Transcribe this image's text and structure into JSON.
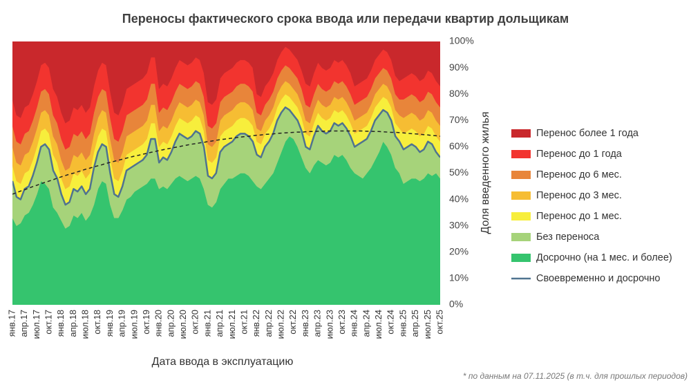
{
  "chart_data": {
    "type": "area",
    "title": "Переносы фактического срока ввода или передачи квартир дольщикам",
    "x_label": "Дата ввода в эксплуатацию",
    "y_label": "Доля введенного жилья",
    "footnote": "* по данным на 07.11.2025 (в т.ч. для прошлых периодов)",
    "legend": "right",
    "ylim": [
      0,
      100
    ],
    "yticks": [
      {
        "value": 0,
        "label": "0%"
      },
      {
        "value": 10,
        "label": "10%"
      },
      {
        "value": 20,
        "label": "20%"
      },
      {
        "value": 30,
        "label": "30%"
      },
      {
        "value": 40,
        "label": "40%"
      },
      {
        "value": 50,
        "label": "50%"
      },
      {
        "value": 60,
        "label": "60%"
      },
      {
        "value": 70,
        "label": "70%"
      },
      {
        "value": 80,
        "label": "80%"
      },
      {
        "value": 90,
        "label": "90%"
      },
      {
        "value": 100,
        "label": "100%"
      }
    ],
    "categories": [
      "янв.17",
      null,
      null,
      "апр.17",
      null,
      null,
      "июл.17",
      null,
      null,
      "окт.17",
      null,
      null,
      "янв.18",
      null,
      null,
      "апр.18",
      null,
      null,
      "июл.18",
      null,
      null,
      "окт.18",
      null,
      null,
      "янв.19",
      null,
      null,
      "апр.19",
      null,
      null,
      "июл.19",
      null,
      null,
      "окт.19",
      null,
      null,
      "янв.20",
      null,
      null,
      "апр.20",
      null,
      null,
      "июл.20",
      null,
      null,
      "окт.20",
      null,
      null,
      "янв.21",
      null,
      null,
      "апр.21",
      null,
      null,
      "июл.21",
      null,
      null,
      "окт.21",
      null,
      null,
      "янв.22",
      null,
      null,
      "апр.22",
      null,
      null,
      "июл.22",
      null,
      null,
      "окт.22",
      null,
      null,
      "янв.23",
      null,
      null,
      "апр.23",
      null,
      null,
      "июл.23",
      null,
      null,
      "окт.23",
      null,
      null,
      "янв.24",
      null,
      null,
      "апр.24",
      null,
      null,
      "июл.24",
      null,
      null,
      "окт.24",
      null,
      null,
      "янв.25",
      null,
      null,
      "апр.25",
      null,
      null,
      "июл.25",
      null,
      null,
      "окт.25"
    ],
    "series": [
      {
        "name": "Досрочно (на 1 мес. и более)",
        "type": "area",
        "color": "#35c46e",
        "values": [
          33,
          30,
          31,
          34,
          35,
          38,
          42,
          47,
          46,
          44,
          37,
          35,
          32,
          29,
          30,
          34,
          33,
          35,
          32,
          34,
          38,
          44,
          47,
          46,
          38,
          33,
          33,
          36,
          40,
          41,
          43,
          44,
          45,
          46,
          48,
          48,
          44,
          45,
          44,
          46,
          48,
          49,
          48,
          47,
          48,
          49,
          48,
          44,
          38,
          37,
          39,
          44,
          46,
          48,
          48,
          49,
          50,
          50,
          49,
          47,
          45,
          44,
          46,
          48,
          50,
          54,
          58,
          62,
          64,
          63,
          60,
          56,
          52,
          50,
          53,
          55,
          54,
          53,
          54,
          57,
          56,
          57,
          55,
          52,
          50,
          49,
          48,
          50,
          52,
          55,
          58,
          62,
          60,
          57,
          52,
          50,
          46,
          47,
          48,
          48,
          47,
          48,
          50,
          49,
          50,
          48
        ]
      },
      {
        "name": "Без переноса",
        "type": "area",
        "color": "#a6d37a",
        "values": [
          14,
          11,
          9,
          10,
          10,
          11,
          12,
          13,
          15,
          15,
          14,
          13,
          10,
          9,
          9,
          10,
          10,
          10,
          10,
          10,
          14,
          14,
          14,
          14,
          12,
          9,
          8,
          9,
          11,
          11,
          10,
          10,
          10,
          11,
          15,
          15,
          10,
          11,
          11,
          12,
          14,
          16,
          16,
          16,
          16,
          17,
          17,
          16,
          11,
          11,
          11,
          14,
          14,
          13,
          14,
          15,
          15,
          15,
          15,
          15,
          12,
          12,
          14,
          14,
          15,
          16,
          15,
          13,
          10,
          9,
          10,
          10,
          8,
          9,
          11,
          13,
          12,
          12,
          12,
          12,
          12,
          12,
          12,
          12,
          10,
          12,
          14,
          13,
          14,
          15,
          14,
          12,
          13,
          13,
          12,
          12,
          13,
          13,
          13,
          12,
          11,
          11,
          12,
          12,
          8,
          8
        ]
      },
      {
        "name": "Перенос до 1 мес.",
        "type": "area",
        "color": "#f7ee3c",
        "values": [
          6,
          6,
          6,
          6,
          6,
          6,
          6,
          6,
          6,
          6,
          6,
          6,
          6,
          6,
          6,
          6,
          6,
          6,
          6,
          6,
          6,
          6,
          6,
          6,
          6,
          6,
          6,
          6,
          6,
          6,
          6,
          6,
          6,
          6,
          6,
          6,
          6,
          6,
          6,
          6,
          6,
          6,
          6,
          6,
          6,
          6,
          6,
          6,
          6,
          6,
          6,
          6,
          6,
          6,
          6,
          6,
          6,
          6,
          6,
          6,
          5,
          5,
          5,
          5,
          5,
          5,
          5,
          5,
          5,
          5,
          5,
          5,
          5,
          5,
          5,
          5,
          5,
          5,
          5,
          5,
          5,
          5,
          5,
          5,
          5,
          5,
          5,
          5,
          5,
          5,
          5,
          5,
          5,
          5,
          5,
          5,
          6,
          6,
          6,
          6,
          6,
          6,
          6,
          6,
          6,
          6
        ]
      },
      {
        "name": "Перенос до 3 мес.",
        "type": "area",
        "color": "#f6bd33",
        "values": [
          7,
          7,
          7,
          7,
          7,
          7,
          7,
          7,
          7,
          7,
          7,
          7,
          7,
          7,
          7,
          7,
          7,
          7,
          7,
          7,
          7,
          7,
          7,
          7,
          7,
          7,
          7,
          7,
          7,
          7,
          7,
          7,
          7,
          7,
          7,
          7,
          6,
          6,
          6,
          6,
          6,
          6,
          6,
          6,
          6,
          6,
          6,
          6,
          6,
          6,
          6,
          6,
          6,
          6,
          6,
          6,
          6,
          6,
          6,
          6,
          5,
          5,
          5,
          5,
          5,
          5,
          5,
          5,
          5,
          5,
          5,
          5,
          5,
          5,
          5,
          5,
          5,
          5,
          5,
          5,
          5,
          5,
          5,
          5,
          5,
          5,
          5,
          5,
          5,
          5,
          5,
          5,
          5,
          5,
          5,
          5,
          6,
          6,
          6,
          6,
          6,
          6,
          6,
          6,
          6,
          6
        ]
      },
      {
        "name": "Перенос до 6 мес.",
        "type": "area",
        "color": "#e8853a",
        "values": [
          8,
          8,
          8,
          8,
          8,
          8,
          8,
          8,
          8,
          8,
          8,
          8,
          8,
          8,
          8,
          8,
          8,
          8,
          8,
          8,
          8,
          8,
          8,
          8,
          8,
          8,
          8,
          8,
          8,
          8,
          8,
          8,
          8,
          8,
          8,
          8,
          7,
          7,
          7,
          7,
          7,
          7,
          7,
          7,
          7,
          7,
          7,
          7,
          7,
          7,
          7,
          7,
          7,
          7,
          7,
          7,
          7,
          7,
          7,
          7,
          6,
          6,
          6,
          6,
          6,
          6,
          6,
          6,
          6,
          6,
          6,
          6,
          6,
          6,
          6,
          6,
          6,
          6,
          6,
          6,
          6,
          6,
          6,
          6,
          6,
          6,
          6,
          6,
          6,
          6,
          6,
          6,
          6,
          6,
          6,
          6,
          7,
          7,
          7,
          7,
          7,
          7,
          7,
          7,
          7,
          7
        ]
      },
      {
        "name": "Перенос до 1 года",
        "type": "area",
        "color": "#f2342f",
        "values": [
          10,
          10,
          10,
          10,
          10,
          10,
          10,
          10,
          10,
          10,
          10,
          10,
          10,
          10,
          10,
          10,
          10,
          10,
          10,
          10,
          10,
          10,
          10,
          10,
          10,
          10,
          10,
          10,
          10,
          10,
          10,
          10,
          10,
          10,
          10,
          10,
          9,
          9,
          9,
          9,
          9,
          9,
          9,
          9,
          9,
          9,
          9,
          9,
          9,
          9,
          9,
          9,
          9,
          9,
          9,
          9,
          9,
          9,
          9,
          9,
          7,
          7,
          7,
          7,
          7,
          7,
          7,
          7,
          7,
          7,
          7,
          7,
          8,
          8,
          8,
          8,
          8,
          8,
          8,
          8,
          8,
          8,
          8,
          8,
          7,
          7,
          7,
          7,
          7,
          7,
          7,
          7,
          7,
          7,
          7,
          7,
          8,
          8,
          8,
          8,
          8,
          8,
          8,
          8,
          8,
          8
        ]
      },
      {
        "name": "Перенос более 1 года",
        "type": "area",
        "color": "#c9282c",
        "values": [
          22,
          28,
          29,
          25,
          24,
          20,
          15,
          9,
          8,
          10,
          18,
          21,
          27,
          31,
          30,
          25,
          26,
          24,
          27,
          25,
          17,
          11,
          8,
          9,
          19,
          27,
          28,
          24,
          18,
          17,
          16,
          15,
          14,
          12,
          6,
          6,
          18,
          16,
          17,
          14,
          10,
          7,
          8,
          9,
          8,
          6,
          7,
          12,
          23,
          24,
          22,
          14,
          12,
          11,
          10,
          8,
          7,
          7,
          8,
          10,
          20,
          21,
          17,
          15,
          12,
          7,
          4,
          2,
          3,
          5,
          7,
          11,
          16,
          17,
          12,
          8,
          10,
          11,
          10,
          7,
          8,
          7,
          9,
          12,
          17,
          16,
          15,
          14,
          11,
          7,
          5,
          3,
          4,
          7,
          13,
          15,
          14,
          13,
          12,
          13,
          15,
          14,
          11,
          12,
          15,
          17
        ]
      },
      {
        "name": "Своевременно и досрочно",
        "type": "line",
        "color": "#4f7390",
        "values": [
          47,
          41,
          40,
          44,
          45,
          49,
          54,
          60,
          61,
          59,
          51,
          48,
          42,
          38,
          39,
          44,
          43,
          45,
          42,
          44,
          52,
          58,
          61,
          60,
          50,
          42,
          41,
          45,
          51,
          52,
          53,
          54,
          55,
          57,
          63,
          63,
          54,
          56,
          55,
          58,
          62,
          65,
          64,
          63,
          64,
          66,
          65,
          60,
          49,
          48,
          50,
          58,
          60,
          61,
          62,
          64,
          65,
          65,
          64,
          62,
          57,
          56,
          60,
          62,
          65,
          70,
          73,
          75,
          74,
          72,
          70,
          66,
          60,
          59,
          64,
          68,
          66,
          65,
          66,
          69,
          68,
          69,
          67,
          64,
          60,
          61,
          62,
          63,
          66,
          70,
          72,
          74,
          73,
          70,
          64,
          62,
          59,
          60,
          61,
          60,
          58,
          59,
          62,
          61,
          58,
          56
        ]
      },
      {
        "type": "line",
        "dashed": true,
        "color": "#222222",
        "values": [
          42.0,
          42.6,
          43.2,
          43.7,
          44.3,
          44.9,
          45.4,
          46.0,
          46.5,
          47.0,
          47.5,
          48.1,
          48.6,
          49.1,
          49.6,
          50.0,
          50.5,
          51.0,
          51.5,
          51.9,
          52.4,
          52.8,
          53.2,
          53.7,
          54.1,
          54.5,
          54.9,
          55.3,
          55.7,
          56.1,
          56.5,
          56.8,
          57.2,
          57.5,
          57.9,
          58.2,
          58.6,
          58.9,
          59.2,
          59.5,
          59.8,
          60.1,
          60.4,
          60.7,
          61.0,
          61.2,
          61.5,
          61.7,
          62.0,
          62.2,
          62.5,
          62.7,
          62.9,
          63.1,
          63.3,
          63.5,
          63.7,
          63.9,
          64.0,
          64.2,
          64.4,
          64.5,
          64.7,
          64.8,
          64.9,
          65.1,
          65.2,
          65.3,
          65.4,
          65.5,
          65.6,
          65.6,
          65.7,
          65.8,
          65.8,
          65.9,
          65.9,
          66.0,
          66.0,
          66.0,
          66.0,
          66.0,
          66.0,
          66.0,
          66.0,
          66.0,
          66.0,
          65.9,
          65.9,
          65.8,
          65.8,
          65.7,
          65.6,
          65.5,
          65.5,
          65.4,
          65.3,
          65.1,
          65.0,
          64.9,
          64.8,
          64.6,
          64.5,
          64.3,
          64.2,
          64.0
        ]
      }
    ]
  }
}
